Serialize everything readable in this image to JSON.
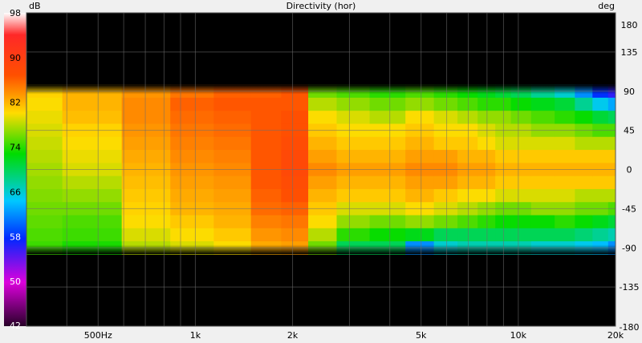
{
  "chart_data": {
    "type": "heatmap",
    "title": "Directivity (hor)",
    "z_unit": "dB",
    "y_unit": "deg",
    "x_scale": "log",
    "xlim": [
      300,
      20000
    ],
    "ylim": [
      -180,
      180
    ],
    "zlim": [
      42,
      98
    ],
    "x_ticks": [
      {
        "value": 500,
        "label": "500Hz"
      },
      {
        "value": 1000,
        "label": "1k"
      },
      {
        "value": 2000,
        "label": "2k"
      },
      {
        "value": 5000,
        "label": "5k"
      },
      {
        "value": 10000,
        "label": "10k"
      },
      {
        "value": 20000,
        "label": "20k"
      }
    ],
    "y_ticks": [
      180,
      135,
      90,
      45,
      0,
      -45,
      -90,
      -135,
      -180
    ],
    "colorbar_ticks": [
      98,
      90,
      82,
      74,
      66,
      58,
      50,
      42
    ],
    "colorbar_labels": [
      "98",
      "90",
      "82",
      "74",
      "66",
      "58",
      "50",
      "42"
    ],
    "data_angle_range": [
      -90,
      90
    ],
    "grid": true,
    "background_color": "#000000",
    "x": [
      300,
      500,
      700,
      1000,
      1300,
      1700,
      2000,
      2500,
      3000,
      4000,
      5000,
      6000,
      7000,
      8000,
      9000,
      10000,
      12000,
      14000,
      16000,
      18000,
      20000
    ],
    "angles": [
      90,
      75,
      60,
      45,
      30,
      15,
      0,
      -15,
      -30,
      -45,
      -60,
      -75,
      -90
    ],
    "levels_db": [
      [
        80.5,
        80,
        79.5,
        79,
        78.5,
        78,
        77.5,
        77,
        76.5,
        76,
        75.5,
        75,
        74.5
      ],
      [
        82,
        82,
        81.5,
        80.5,
        80,
        79.5,
        79,
        78,
        77,
        76,
        75,
        74.5,
        73.5
      ],
      [
        83.5,
        84,
        84,
        83.5,
        83,
        82.5,
        82,
        81.5,
        81,
        80.5,
        80,
        79,
        78
      ],
      [
        85,
        86,
        85.5,
        85,
        84.5,
        84,
        83.5,
        83,
        82.5,
        82,
        81,
        80,
        79
      ],
      [
        86,
        86.5,
        86,
        85.5,
        85,
        84.5,
        84,
        83.5,
        83,
        82.5,
        82,
        81,
        80
      ],
      [
        86,
        86.5,
        86.5,
        86.5,
        86.5,
        86.5,
        86.5,
        86.5,
        86,
        85.5,
        84.5,
        83.5,
        82.5
      ],
      [
        86.5,
        86.5,
        87,
        87,
        87.5,
        88,
        88,
        87.5,
        87,
        86,
        85,
        84,
        83
      ],
      [
        76,
        78,
        80,
        81,
        82,
        83,
        84,
        83,
        82,
        81,
        80,
        78,
        76
      ],
      [
        75,
        77,
        79,
        80,
        81,
        82,
        83,
        82,
        81,
        79,
        77,
        74,
        70
      ],
      [
        74,
        76,
        78,
        80,
        81,
        82,
        83,
        82,
        81,
        79,
        76,
        73,
        70
      ],
      [
        75,
        77,
        80,
        81,
        82,
        83,
        84,
        83,
        82,
        80,
        77,
        72,
        62
      ],
      [
        74,
        76,
        79,
        80,
        81,
        83,
        84,
        83,
        81,
        79,
        76,
        70,
        66
      ],
      [
        73,
        75,
        78,
        80,
        81,
        82,
        83,
        82,
        80,
        78,
        75,
        70,
        67
      ],
      [
        72,
        74,
        77,
        79,
        80,
        82,
        83,
        82,
        80,
        77,
        74,
        70,
        67
      ],
      [
        71,
        74,
        77,
        78,
        79,
        81,
        82,
        81,
        79,
        76,
        73,
        70,
        67
      ],
      [
        70,
        73,
        76,
        78,
        79,
        81,
        82,
        81,
        79,
        76,
        73,
        70,
        67
      ],
      [
        68,
        72,
        75,
        77,
        79,
        81,
        82,
        81,
        79,
        77,
        73,
        70,
        66
      ],
      [
        66,
        71,
        74,
        77,
        79,
        81,
        82,
        81,
        79,
        77,
        74,
        70,
        66
      ],
      [
        62,
        68,
        73,
        76,
        78,
        81,
        82,
        81,
        78,
        76,
        73,
        69,
        65
      ],
      [
        58,
        65,
        71,
        75,
        78,
        81,
        82,
        81,
        78,
        76,
        72,
        68,
        64
      ],
      [
        56,
        63,
        70,
        75,
        78,
        81,
        82,
        81,
        78,
        75,
        71,
        67,
        62
      ]
    ]
  }
}
